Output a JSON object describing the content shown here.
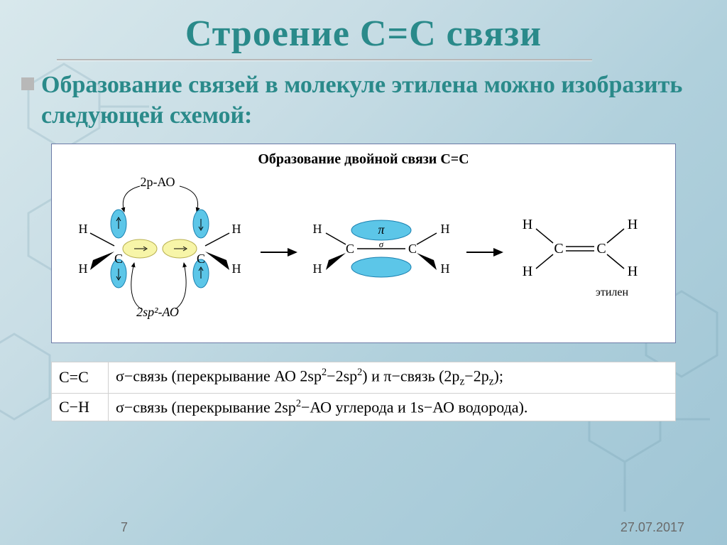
{
  "title": "Строение С=С связи",
  "subtitle": "Образование связей в молекуле этилена можно изобразить следующей схемой:",
  "diagram": {
    "title": "Образование двойной связи С=С",
    "label_2p": "2p-АО",
    "label_2sp2": "2sp²-АО",
    "H": "H",
    "C": "C",
    "pi": "π",
    "sigma": "σ",
    "ethylene": "этилен",
    "colors": {
      "blue": "#5cc6e8",
      "blue_stroke": "#1a80b0",
      "yellow": "#f7f5a8",
      "yellow_stroke": "#b8b050",
      "arrow": "#000000",
      "text": "#000000"
    }
  },
  "bond_rows": [
    {
      "left": "C=C",
      "right_html": "σ−связь (перекрывание АО 2sp<sup>2</sup>−2sp<sup>2</sup>)  и  π−связь (2p<sub>z</sub>−2p<sub>z</sub>);"
    },
    {
      "left": "C−H",
      "right_html": "σ−связь (перекрывание 2sp<sup>2</sup>−АО  углерода и 1s−АО водорода)."
    }
  ],
  "footer": {
    "page": "7",
    "date": "27.07.2017"
  }
}
